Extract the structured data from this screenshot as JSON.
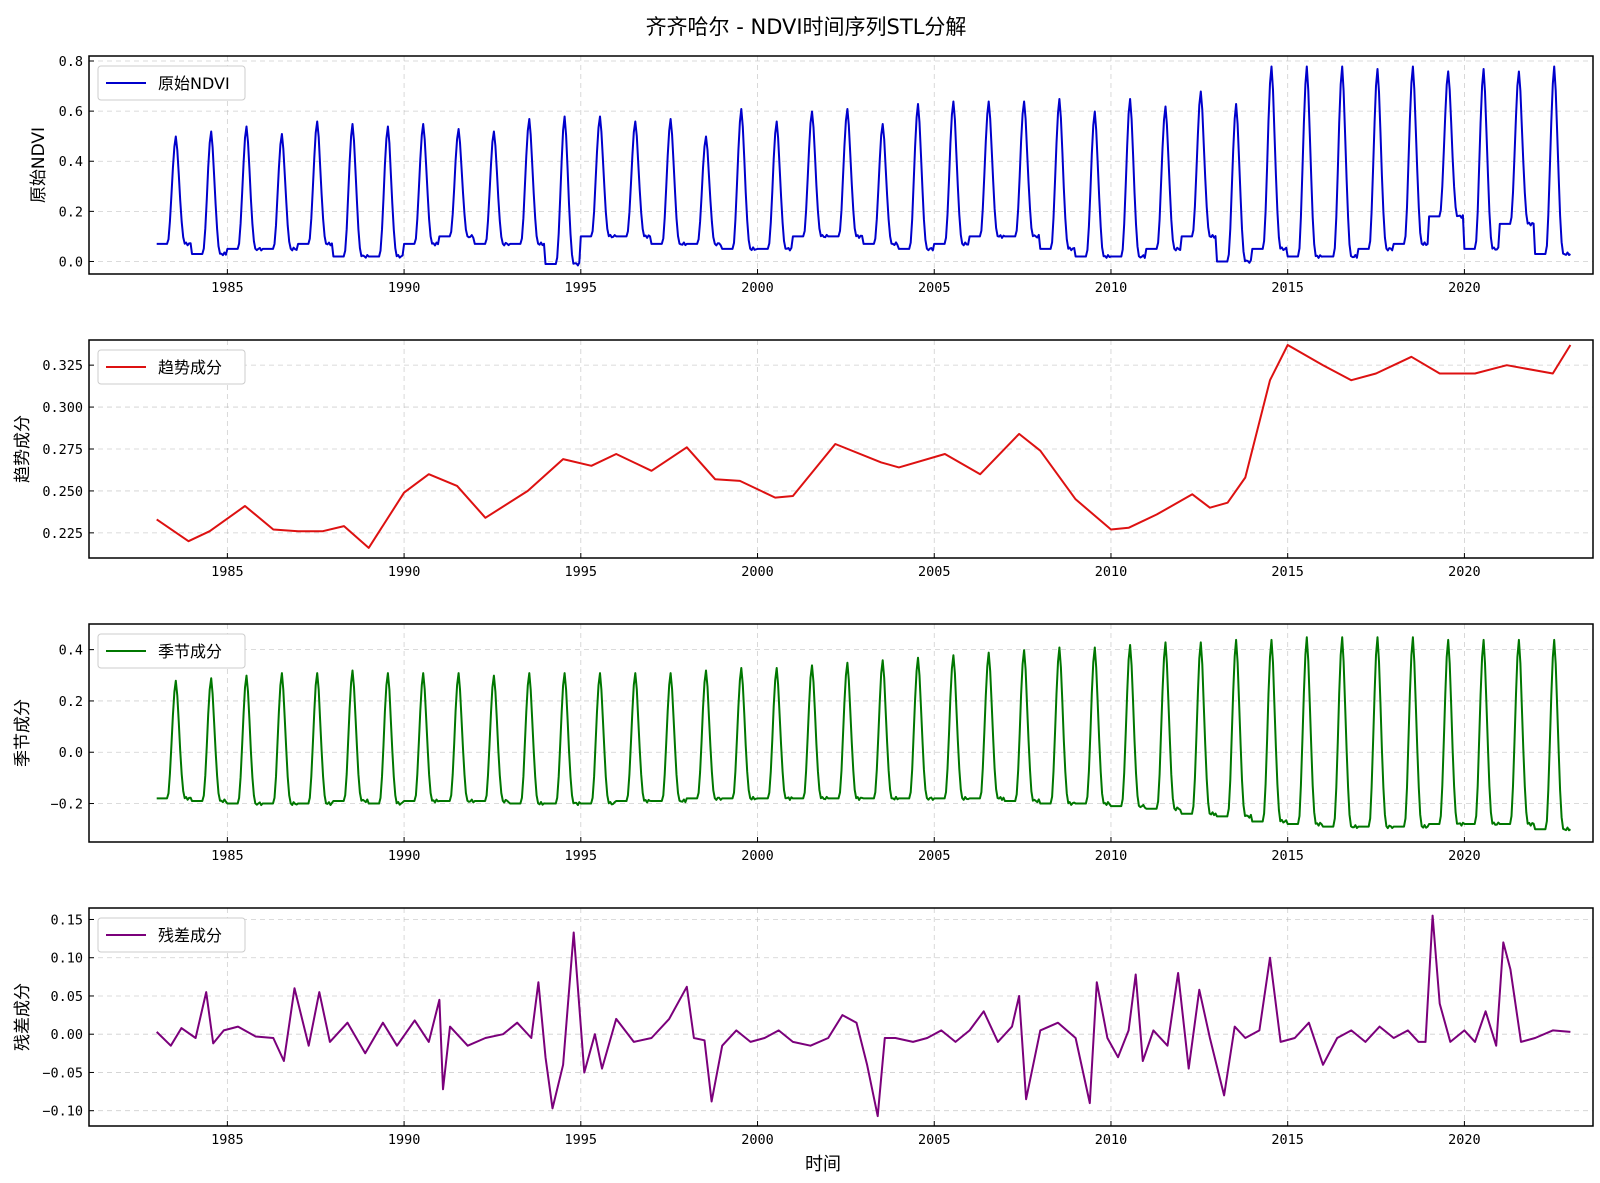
{
  "title": "齐齐哈尔 - NDVI时间序列STL分解",
  "xlabel": "时间",
  "chart_data": [
    {
      "type": "line",
      "series_name": "原始NDVI",
      "ylabel": "原始NDVI",
      "color": "#0000cc",
      "xlim": [
        1983,
        2023
      ],
      "ylim": [
        -0.05,
        0.82
      ],
      "yticks": [
        0.0,
        0.2,
        0.4,
        0.6,
        0.8
      ],
      "ytick_labels": [
        "0.0",
        "0.2",
        "0.4",
        "0.6",
        "0.8"
      ],
      "xticks": [
        1985,
        1990,
        1995,
        2000,
        2005,
        2010,
        2015,
        2020
      ],
      "xtick_labels": [
        "1985",
        "1990",
        "1995",
        "2000",
        "2005",
        "2010",
        "2015",
        "2020"
      ],
      "peaks": [
        0.5,
        0.52,
        0.54,
        0.51,
        0.56,
        0.55,
        0.54,
        0.55,
        0.53,
        0.52,
        0.57,
        0.58,
        0.58,
        0.56,
        0.57,
        0.5,
        0.61,
        0.56,
        0.6,
        0.61,
        0.55,
        0.63,
        0.64,
        0.64,
        0.64,
        0.65,
        0.6,
        0.65,
        0.62,
        0.68,
        0.63,
        0.78,
        0.78,
        0.78,
        0.77,
        0.78,
        0.76,
        0.77,
        0.76,
        0.78
      ],
      "troughs": [
        0.07,
        0.03,
        0.05,
        0.05,
        0.07,
        0.02,
        0.02,
        0.07,
        0.1,
        0.07,
        0.07,
        -0.01,
        0.1,
        0.1,
        0.07,
        0.07,
        0.05,
        0.05,
        0.1,
        0.1,
        0.07,
        0.05,
        0.07,
        0.1,
        0.1,
        0.05,
        0.02,
        0.02,
        0.05,
        0.1,
        0.0,
        0.05,
        0.02,
        0.02,
        0.05,
        0.07,
        0.18,
        0.05,
        0.15,
        0.03
      ]
    },
    {
      "type": "line",
      "series_name": "趋势成分",
      "ylabel": "趋势成分",
      "color": "#dd1111",
      "xlim": [
        1983,
        2023
      ],
      "ylim": [
        0.21,
        0.34
      ],
      "yticks": [
        0.225,
        0.25,
        0.275,
        0.3,
        0.325
      ],
      "ytick_labels": [
        "0.225",
        "0.250",
        "0.275",
        "0.300",
        "0.325"
      ],
      "xticks": [
        1985,
        1990,
        1995,
        2000,
        2005,
        2010,
        2015,
        2020
      ],
      "xtick_labels": [
        "1985",
        "1990",
        "1995",
        "2000",
        "2005",
        "2010",
        "2015",
        "2020"
      ],
      "x": [
        1983,
        1983.9,
        1984.5,
        1985.5,
        1986.3,
        1987,
        1987.7,
        1988.3,
        1989,
        1990,
        1990.7,
        1991.5,
        1992.3,
        1993.5,
        1994.5,
        1995.3,
        1996,
        1997,
        1998,
        1998.8,
        1999.5,
        2000.5,
        2001,
        2002.2,
        2003.5,
        2004,
        2005.3,
        2006.3,
        2007.4,
        2008,
        2009,
        2010,
        2010.5,
        2011.3,
        2012.3,
        2012.8,
        2013.3,
        2013.8,
        2014.5,
        2015,
        2016,
        2016.8,
        2017.5,
        2018.5,
        2019.3,
        2020.3,
        2021.2,
        2022.5,
        2023
      ],
      "y": [
        0.233,
        0.22,
        0.226,
        0.241,
        0.227,
        0.226,
        0.226,
        0.229,
        0.216,
        0.249,
        0.26,
        0.253,
        0.234,
        0.25,
        0.269,
        0.265,
        0.272,
        0.262,
        0.276,
        0.257,
        0.256,
        0.246,
        0.247,
        0.278,
        0.267,
        0.264,
        0.272,
        0.26,
        0.284,
        0.274,
        0.245,
        0.227,
        0.228,
        0.236,
        0.248,
        0.24,
        0.243,
        0.258,
        0.316,
        0.337,
        0.325,
        0.316,
        0.32,
        0.33,
        0.32,
        0.32,
        0.325,
        0.32,
        0.337
      ]
    },
    {
      "type": "line",
      "series_name": "季节成分",
      "ylabel": "季节成分",
      "color": "#007700",
      "xlim": [
        1983,
        2023
      ],
      "ylim": [
        -0.35,
        0.5
      ],
      "yticks": [
        -0.2,
        0.0,
        0.2,
        0.4
      ],
      "ytick_labels": [
        "−0.2",
        "0.0",
        "0.2",
        "0.4"
      ],
      "xticks": [
        1985,
        1990,
        1995,
        2000,
        2005,
        2010,
        2015,
        2020
      ],
      "xtick_labels": [
        "1985",
        "1990",
        "1995",
        "2000",
        "2005",
        "2010",
        "2015",
        "2020"
      ],
      "peaks": [
        0.28,
        0.29,
        0.3,
        0.31,
        0.31,
        0.32,
        0.31,
        0.31,
        0.31,
        0.3,
        0.31,
        0.31,
        0.31,
        0.31,
        0.31,
        0.32,
        0.33,
        0.33,
        0.34,
        0.35,
        0.36,
        0.37,
        0.38,
        0.39,
        0.4,
        0.41,
        0.41,
        0.42,
        0.43,
        0.43,
        0.44,
        0.44,
        0.45,
        0.45,
        0.45,
        0.45,
        0.44,
        0.44,
        0.44,
        0.44
      ],
      "troughs": [
        -0.18,
        -0.19,
        -0.2,
        -0.2,
        -0.2,
        -0.19,
        -0.2,
        -0.19,
        -0.19,
        -0.19,
        -0.2,
        -0.2,
        -0.2,
        -0.19,
        -0.19,
        -0.18,
        -0.18,
        -0.18,
        -0.18,
        -0.18,
        -0.18,
        -0.18,
        -0.18,
        -0.18,
        -0.19,
        -0.2,
        -0.2,
        -0.21,
        -0.22,
        -0.24,
        -0.25,
        -0.27,
        -0.28,
        -0.29,
        -0.29,
        -0.29,
        -0.28,
        -0.28,
        -0.28,
        -0.3
      ]
    },
    {
      "type": "line",
      "series_name": "残差成分",
      "ylabel": "残差成分",
      "color": "#7b007b",
      "xlim": [
        1983,
        2023
      ],
      "ylim": [
        -0.12,
        0.165
      ],
      "yticks": [
        -0.1,
        -0.05,
        0.0,
        0.05,
        0.1,
        0.15
      ],
      "ytick_labels": [
        "−0.10",
        "−0.05",
        "0.00",
        "0.05",
        "0.10",
        "0.15"
      ],
      "xticks": [
        1985,
        1990,
        1995,
        2000,
        2005,
        2010,
        2015,
        2020
      ],
      "xtick_labels": [
        "1985",
        "1990",
        "1995",
        "2000",
        "2005",
        "2010",
        "2015",
        "2020"
      ],
      "x": [
        1983,
        1983.4,
        1983.7,
        1984.1,
        1984.4,
        1984.6,
        1984.9,
        1985.3,
        1985.8,
        1986.3,
        1986.6,
        1986.9,
        1987.3,
        1987.6,
        1987.9,
        1988.4,
        1988.9,
        1989.4,
        1989.8,
        1990.3,
        1990.7,
        1991,
        1991.1,
        1991.3,
        1991.8,
        1992.3,
        1992.8,
        1993.2,
        1993.6,
        1993.8,
        1994.0,
        1994.2,
        1994.5,
        1994.8,
        1995.1,
        1995.4,
        1995.6,
        1996.0,
        1996.5,
        1997.0,
        1997.5,
        1998.0,
        1998.2,
        1998.5,
        1998.7,
        1999.0,
        1999.4,
        1999.8,
        2000.2,
        2000.6,
        2001.0,
        2001.5,
        2002.0,
        2002.4,
        2002.8,
        2003.1,
        2003.4,
        2003.6,
        2003.9,
        2004.4,
        2004.8,
        2005.2,
        2005.6,
        2006.0,
        2006.4,
        2006.8,
        2007.2,
        2007.4,
        2007.6,
        2008.0,
        2008.5,
        2009.0,
        2009.4,
        2009.6,
        2009.9,
        2010.2,
        2010.5,
        2010.7,
        2010.9,
        2011.2,
        2011.6,
        2011.9,
        2012.2,
        2012.5,
        2012.8,
        2013.2,
        2013.5,
        2013.8,
        2014.2,
        2014.5,
        2014.8,
        2015.2,
        2015.6,
        2016.0,
        2016.4,
        2016.8,
        2017.2,
        2017.6,
        2018.0,
        2018.4,
        2018.7,
        2018.9,
        2019.1,
        2019.3,
        2019.6,
        2020.0,
        2020.3,
        2020.6,
        2020.9,
        2021.1,
        2021.3,
        2021.6,
        2022.0,
        2022.5,
        2023
      ],
      "y": [
        0.003,
        -0.015,
        0.008,
        -0.005,
        0.055,
        -0.012,
        0.005,
        0.01,
        -0.003,
        -0.005,
        -0.035,
        0.06,
        -0.015,
        0.055,
        -0.01,
        0.015,
        -0.025,
        0.015,
        -0.015,
        0.018,
        -0.01,
        0.045,
        -0.072,
        0.01,
        -0.015,
        -0.005,
        0.0,
        0.015,
        -0.005,
        0.068,
        -0.03,
        -0.097,
        -0.04,
        0.133,
        -0.05,
        0.0,
        -0.045,
        0.02,
        -0.01,
        -0.005,
        0.02,
        0.062,
        -0.005,
        -0.008,
        -0.088,
        -0.015,
        0.005,
        -0.01,
        -0.005,
        0.005,
        -0.01,
        -0.015,
        -0.005,
        0.025,
        0.015,
        -0.04,
        -0.107,
        -0.005,
        -0.005,
        -0.01,
        -0.005,
        0.005,
        -0.01,
        0.005,
        0.03,
        -0.01,
        0.01,
        0.05,
        -0.085,
        0.005,
        0.015,
        -0.005,
        -0.09,
        0.068,
        -0.005,
        -0.03,
        0.005,
        0.078,
        -0.035,
        0.005,
        -0.015,
        0.08,
        -0.045,
        0.058,
        -0.005,
        -0.08,
        0.01,
        -0.005,
        0.005,
        0.1,
        -0.01,
        -0.005,
        0.015,
        -0.04,
        -0.005,
        0.005,
        -0.01,
        0.01,
        -0.005,
        0.005,
        -0.01,
        -0.01,
        0.155,
        0.04,
        -0.01,
        0.005,
        -0.01,
        0.03,
        -0.015,
        0.12,
        0.085,
        -0.01,
        -0.005,
        0.005,
        0.003
      ]
    }
  ]
}
